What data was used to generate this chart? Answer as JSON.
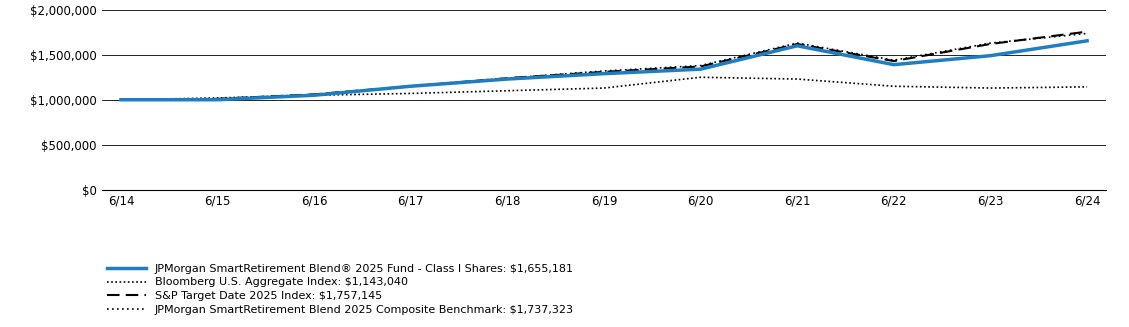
{
  "x_labels": [
    "6/14",
    "6/15",
    "6/16",
    "6/17",
    "6/18",
    "6/19",
    "6/20",
    "6/21",
    "6/22",
    "6/23",
    "6/24"
  ],
  "x_values": [
    0,
    1,
    2,
    3,
    4,
    5,
    6,
    7,
    8,
    9,
    10
  ],
  "fund": [
    1000000,
    1000000,
    1050000,
    1150000,
    1230000,
    1290000,
    1340000,
    1600000,
    1390000,
    1490000,
    1655181
  ],
  "bloomberg": [
    1000000,
    1020000,
    1050000,
    1070000,
    1100000,
    1130000,
    1250000,
    1230000,
    1150000,
    1130000,
    1143040
  ],
  "sp_target": [
    1000000,
    1010000,
    1060000,
    1150000,
    1240000,
    1310000,
    1370000,
    1620000,
    1430000,
    1620000,
    1757145
  ],
  "jpmorgan_composite": [
    1000000,
    1010000,
    1060000,
    1150000,
    1240000,
    1320000,
    1380000,
    1630000,
    1440000,
    1630000,
    1737323
  ],
  "fund_color": "#1f7ec1",
  "bloomberg_color": "#000000",
  "sp_color": "#000000",
  "composite_color": "#000000",
  "ylim": [
    0,
    2000000
  ],
  "yticks": [
    0,
    500000,
    1000000,
    1500000,
    2000000
  ],
  "legend_entries": [
    "JPMorgan SmartRetirement Blend® 2025 Fund - Class I Shares: $1,655,181",
    "Bloomberg U.S. Aggregate Index: $1,143,040",
    "S&P Target Date 2025 Index: $1,757,145",
    "JPMorgan SmartRetirement Blend 2025 Composite Benchmark: $1,737,323"
  ],
  "bg_color": "#ffffff",
  "grid_color": "#000000",
  "font_color": "#000000"
}
